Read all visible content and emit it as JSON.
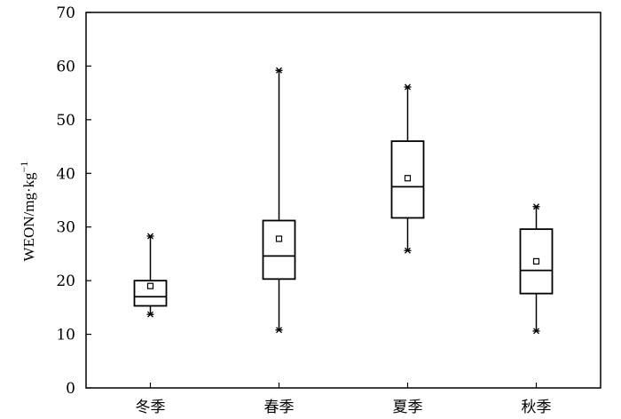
{
  "chart_data": {
    "type": "box",
    "categories": [
      "冬季",
      "春季",
      "夏季",
      "秋季"
    ],
    "ylabel": {
      "base": "WEON/mg·kg",
      "superscript": "−1"
    },
    "ylim": [
      0,
      70
    ],
    "yticks": [
      "0",
      "10",
      "20",
      "30",
      "40",
      "50",
      "60",
      "70"
    ],
    "grid": false,
    "series": [
      {
        "category": "冬季",
        "min": 13.7,
        "q1": 15.3,
        "median": 17.0,
        "q3": 20.0,
        "max": 28.3,
        "mean": 19.0
      },
      {
        "category": "春季",
        "min": 10.8,
        "q1": 20.3,
        "median": 24.6,
        "q3": 31.2,
        "max": 59.2,
        "mean": 27.8
      },
      {
        "category": "夏季",
        "min": 25.6,
        "q1": 31.7,
        "median": 37.5,
        "q3": 46.0,
        "max": 56.1,
        "mean": 39.1
      },
      {
        "category": "秋季",
        "min": 10.6,
        "q1": 17.6,
        "median": 21.9,
        "q3": 29.6,
        "max": 33.8,
        "mean": 23.6
      }
    ]
  }
}
